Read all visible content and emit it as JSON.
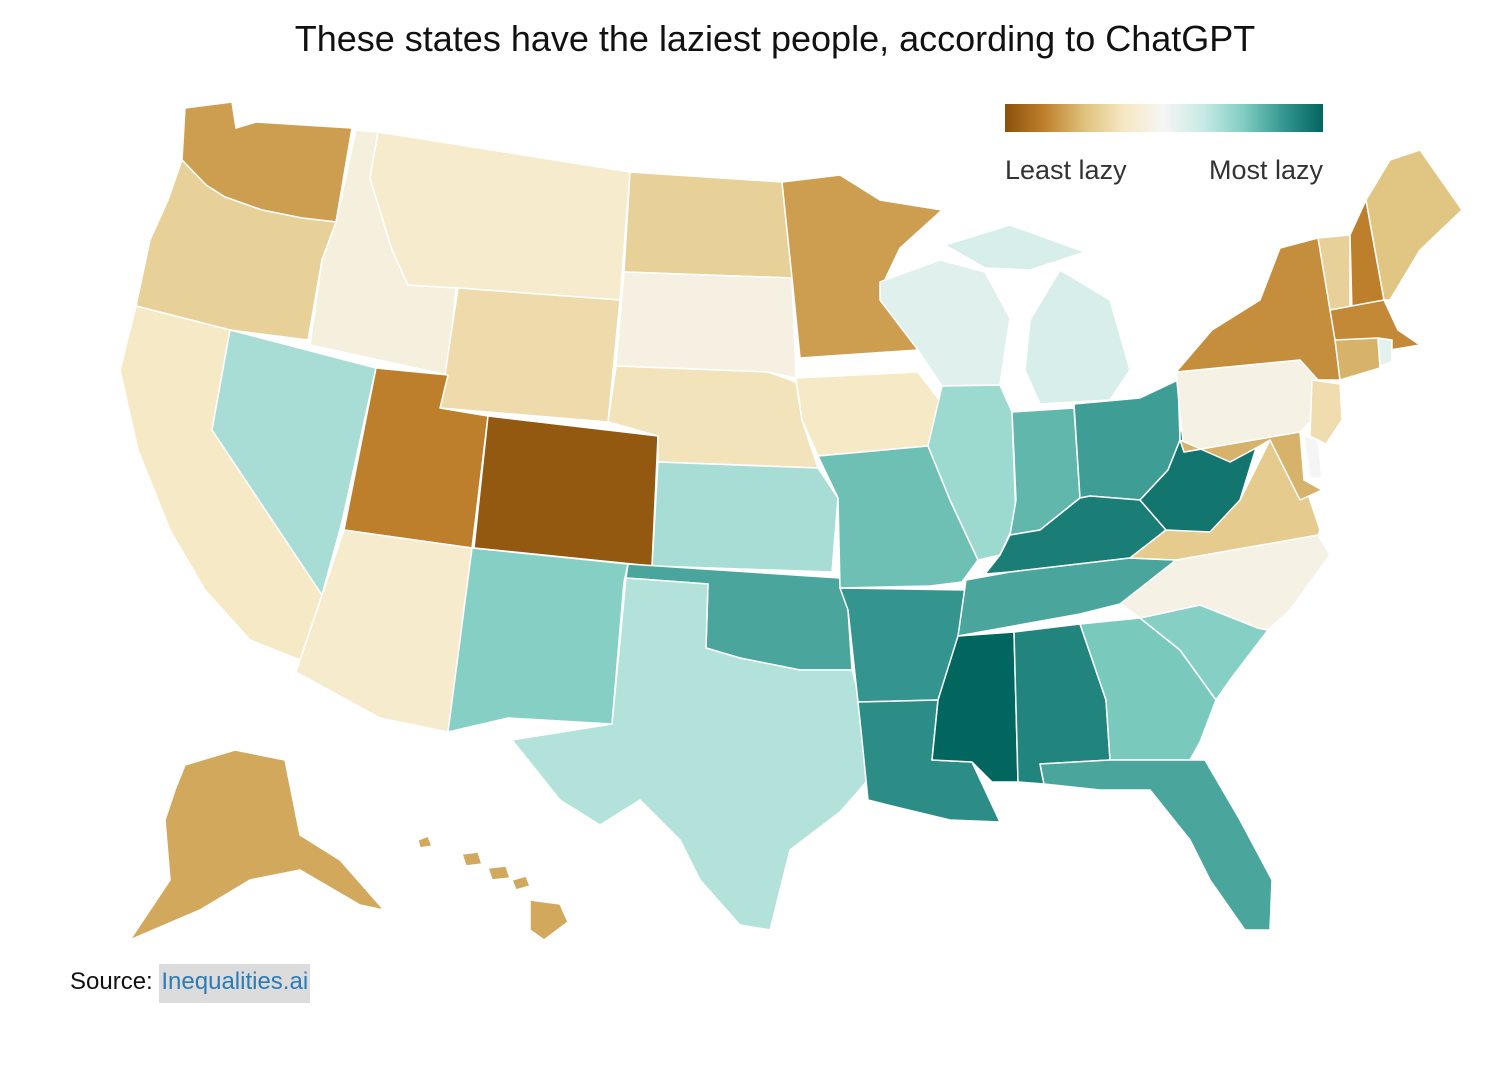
{
  "title": "These states have the laziest people, according to ChatGPT",
  "legend": {
    "low_label": "Least lazy",
    "high_label": "Most lazy",
    "gradient": [
      "#8c510a",
      "#bf812d",
      "#dfc27d",
      "#f6e8c3",
      "#f5f5f5",
      "#c7eae5",
      "#80cdc1",
      "#35978f",
      "#01665e"
    ]
  },
  "source": {
    "prefix": "Source: ",
    "link_text": "Inequalities.ai"
  },
  "chart_data": {
    "type": "choropleth",
    "region": "United States",
    "title": "These states have the laziest people, according to ChatGPT",
    "scale": {
      "min_label": "Least lazy",
      "max_label": "Most lazy",
      "domain": [
        0,
        1
      ]
    },
    "states": [
      {
        "id": "WA",
        "value": 0.18
      },
      {
        "id": "OR",
        "value": 0.3
      },
      {
        "id": "CA",
        "value": 0.38
      },
      {
        "id": "ID",
        "value": 0.44
      },
      {
        "id": "NV",
        "value": 0.68
      },
      {
        "id": "MT",
        "value": 0.4
      },
      {
        "id": "WY",
        "value": 0.33
      },
      {
        "id": "UT",
        "value": 0.12
      },
      {
        "id": "CO",
        "value": 0.02
      },
      {
        "id": "AZ",
        "value": 0.4
      },
      {
        "id": "NM",
        "value": 0.74
      },
      {
        "id": "ND",
        "value": 0.3
      },
      {
        "id": "SD",
        "value": 0.45
      },
      {
        "id": "NE",
        "value": 0.36
      },
      {
        "id": "KS",
        "value": 0.68
      },
      {
        "id": "OK",
        "value": 0.84
      },
      {
        "id": "TX",
        "value": 0.66
      },
      {
        "id": "MN",
        "value": 0.18
      },
      {
        "id": "IA",
        "value": 0.38
      },
      {
        "id": "MO",
        "value": 0.78
      },
      {
        "id": "AR",
        "value": 0.88
      },
      {
        "id": "LA",
        "value": 0.9
      },
      {
        "id": "WI",
        "value": 0.56
      },
      {
        "id": "IL",
        "value": 0.7
      },
      {
        "id": "MI",
        "value": 0.58
      },
      {
        "id": "IN",
        "value": 0.8
      },
      {
        "id": "OH",
        "value": 0.86
      },
      {
        "id": "KY",
        "value": 0.94
      },
      {
        "id": "TN",
        "value": 0.84
      },
      {
        "id": "MS",
        "value": 1.0
      },
      {
        "id": "AL",
        "value": 0.92
      },
      {
        "id": "GA",
        "value": 0.76
      },
      {
        "id": "FL",
        "value": 0.84
      },
      {
        "id": "SC",
        "value": 0.74
      },
      {
        "id": "NC",
        "value": 0.46
      },
      {
        "id": "VA",
        "value": 0.28
      },
      {
        "id": "WV",
        "value": 0.96
      },
      {
        "id": "PA",
        "value": 0.46
      },
      {
        "id": "NY",
        "value": 0.15
      },
      {
        "id": "VT",
        "value": 0.3
      },
      {
        "id": "NH",
        "value": 0.12
      },
      {
        "id": "ME",
        "value": 0.26
      },
      {
        "id": "MA",
        "value": 0.14
      },
      {
        "id": "CT",
        "value": 0.22
      },
      {
        "id": "RI",
        "value": 0.55
      },
      {
        "id": "NJ",
        "value": 0.34
      },
      {
        "id": "DE",
        "value": 0.5
      },
      {
        "id": "MD",
        "value": 0.22
      },
      {
        "id": "AK",
        "value": 0.2
      },
      {
        "id": "HI",
        "value": 0.2
      }
    ]
  }
}
